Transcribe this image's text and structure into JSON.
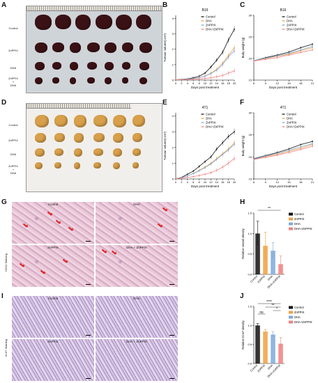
{
  "panels": {
    "A": "A",
    "B": "B",
    "C": "C",
    "D": "D",
    "E": "E",
    "F": "F",
    "G": "G",
    "H": "H",
    "I": "I",
    "J": "J"
  },
  "photo_rows": {
    "A": [
      "Control",
      "ZnPPIX",
      "DHA",
      "ZnPPIX\n+\nDHA"
    ],
    "D": [
      "Control",
      "ZnPPIX",
      "DHA",
      "ZnPPIX\n+\nDHA"
    ]
  },
  "histology": {
    "G_labels": [
      "Control",
      "DHA",
      "ZnPPIX",
      "DHA + ZnPPIX"
    ],
    "G_side": "CD31 Staining",
    "I_labels": [
      "Control",
      "DHA",
      "ZnPPIX",
      "DHA + ZnPPIX"
    ],
    "I_side": "Ki-67 Staining"
  },
  "colors": {
    "control": "#111111",
    "dha": "#f0a040",
    "znppix": "#7fa8d8",
    "combo": "#f08080",
    "tumor_A": "#3a1216",
    "tumor_D": "#d8a04a"
  },
  "chart_data": [
    {
      "id": "B",
      "type": "line",
      "title": "B16",
      "xlabel": "Days post treatment",
      "ylabel": "Tumour volume( cm³)",
      "x": [
        0,
        2,
        4,
        6,
        8,
        10,
        12,
        14,
        16,
        18,
        20
      ],
      "xticks": [
        "0",
        "2",
        "4",
        "6",
        "8",
        "10",
        "12",
        "14",
        "16",
        "18",
        "20"
      ],
      "yticks": [
        "0",
        "1",
        "2",
        "3",
        "4"
      ],
      "ylim": [
        0,
        4.2
      ],
      "legend": [
        "Control",
        "DHA",
        "ZnPPIX",
        "DHA+ZnPPIX"
      ],
      "series": [
        {
          "name": "Control",
          "values": [
            0.02,
            0.05,
            0.08,
            0.15,
            0.25,
            0.45,
            0.85,
            1.3,
            1.8,
            2.6,
            3.3
          ]
        },
        {
          "name": "DHA",
          "values": [
            0.02,
            0.04,
            0.06,
            0.1,
            0.16,
            0.26,
            0.45,
            0.7,
            1.1,
            1.6,
            2.1
          ]
        },
        {
          "name": "ZnPPIX",
          "values": [
            0.02,
            0.04,
            0.06,
            0.1,
            0.15,
            0.25,
            0.42,
            0.65,
            1.0,
            1.5,
            1.9
          ]
        },
        {
          "name": "DHA+ZnPPIX",
          "values": [
            0.02,
            0.03,
            0.04,
            0.05,
            0.07,
            0.1,
            0.15,
            0.22,
            0.3,
            0.45,
            0.6
          ]
        }
      ]
    },
    {
      "id": "C",
      "type": "line",
      "title": "B16",
      "xlabel": "Days post treatment",
      "ylabel": "Body weight (g)",
      "x": [
        6,
        9,
        12,
        15,
        18,
        21
      ],
      "xticks": [
        "6",
        "9",
        "12",
        "15",
        "18",
        "21"
      ],
      "yticks": [
        "15",
        "20",
        "25",
        "30"
      ],
      "ylim": [
        15,
        30
      ],
      "legend": [
        "Control",
        "DHA",
        "ZnPPIX",
        "DHA+ZnPPIX"
      ],
      "series": [
        {
          "name": "Control",
          "values": [
            19.5,
            20.2,
            20.8,
            21.5,
            22.5,
            23.3
          ]
        },
        {
          "name": "DHA",
          "values": [
            19.5,
            20.0,
            20.5,
            21.0,
            21.8,
            22.5
          ]
        },
        {
          "name": "ZnPPIX",
          "values": [
            19.5,
            20.1,
            20.6,
            21.2,
            22.0,
            22.8
          ]
        },
        {
          "name": "DHA+ZnPPIX",
          "values": [
            19.4,
            19.8,
            20.2,
            20.8,
            21.4,
            22.0
          ]
        }
      ]
    },
    {
      "id": "E",
      "type": "line",
      "title": "4T1",
      "xlabel": "Days post treatment",
      "ylabel": "Tumour volume( cm³)",
      "x": [
        0,
        2,
        4,
        6,
        8,
        10,
        12,
        14,
        16,
        18,
        20
      ],
      "xticks": [
        "0",
        "2",
        "4",
        "6",
        "8",
        "10",
        "12",
        "14",
        "16",
        "18",
        "20"
      ],
      "yticks": [
        "0",
        "1",
        "2",
        "3",
        "4"
      ],
      "ylim": [
        0,
        4.2
      ],
      "legend": [
        "Control",
        "DHA",
        "ZnPPIX",
        "DHA+ZnPPIX"
      ],
      "series": [
        {
          "name": "Control",
          "values": [
            0.02,
            0.1,
            0.3,
            0.5,
            0.8,
            1.1,
            1.4,
            1.9,
            2.3,
            2.7,
            3.0
          ]
        },
        {
          "name": "DHA",
          "values": [
            0.02,
            0.08,
            0.2,
            0.35,
            0.55,
            0.75,
            1.0,
            1.3,
            1.6,
            1.9,
            2.3
          ]
        },
        {
          "name": "ZnPPIX",
          "values": [
            0.02,
            0.08,
            0.2,
            0.34,
            0.52,
            0.72,
            0.95,
            1.25,
            1.55,
            1.85,
            2.2
          ]
        },
        {
          "name": "DHA+ZnPPIX",
          "values": [
            0.02,
            0.05,
            0.1,
            0.15,
            0.22,
            0.3,
            0.4,
            0.55,
            0.75,
            1.0,
            1.3
          ]
        }
      ]
    },
    {
      "id": "F",
      "type": "line",
      "title": "4T1",
      "xlabel": "Days post treatment",
      "ylabel": "Body weight (g)",
      "x": [
        6,
        9,
        12,
        15,
        18,
        21
      ],
      "xticks": [
        "6",
        "9",
        "12",
        "15",
        "18",
        "21"
      ],
      "yticks": [
        "15",
        "20",
        "25",
        "30"
      ],
      "ylim": [
        15,
        30
      ],
      "legend": [
        "Control",
        "DHA",
        "ZnPPIX",
        "DHA+ZnPPIX"
      ],
      "series": [
        {
          "name": "Control",
          "values": [
            19.6,
            20.3,
            21.0,
            21.8,
            22.8,
            23.5
          ]
        },
        {
          "name": "DHA",
          "values": [
            19.5,
            20.1,
            20.6,
            21.3,
            22.0,
            22.8
          ]
        },
        {
          "name": "ZnPPIX",
          "values": [
            19.5,
            20.2,
            20.8,
            21.5,
            22.3,
            23.0
          ]
        },
        {
          "name": "DHA+ZnPPIX",
          "values": [
            19.4,
            19.9,
            20.4,
            21.0,
            21.7,
            22.4
          ]
        }
      ]
    },
    {
      "id": "H",
      "type": "bar",
      "ylabel": "Relative vessel density",
      "categories": [
        "Control",
        "ZnPPIX",
        "DHA",
        "DHA+ZnPPIX"
      ],
      "values": [
        1.0,
        0.7,
        0.58,
        0.25
      ],
      "errors": [
        0.3,
        0.33,
        0.2,
        0.2
      ],
      "yticks": [
        "0.0",
        "0.5",
        "1.0",
        "1.5"
      ],
      "ylim": [
        0,
        1.5
      ],
      "legend": [
        "Control",
        "ZnPPIX",
        "DHA",
        "DHA+ZnPPIX"
      ],
      "sig": [
        {
          "from": 0,
          "to": 3,
          "label": "**"
        }
      ]
    },
    {
      "id": "J",
      "type": "bar",
      "ylabel": "Relative Ki-67 density",
      "categories": [
        "Control",
        "ZnPPIX",
        "DHA",
        "DHA+ZnPPIX"
      ],
      "values": [
        1.0,
        0.84,
        0.76,
        0.52
      ],
      "errors": [
        0.05,
        0.05,
        0.07,
        0.16
      ],
      "yticks": [
        "0.0",
        "0.5",
        "1.0",
        "1.5"
      ],
      "ylim": [
        0,
        1.5
      ],
      "legend": [
        "Control",
        "ZnPPIX",
        "DHA",
        "DHA+ZnPPIX"
      ],
      "sig": [
        {
          "from": 0,
          "to": 3,
          "label": "****"
        },
        {
          "from": 1,
          "to": 3,
          "label": "**"
        },
        {
          "from": 2,
          "to": 3,
          "label": "*"
        },
        {
          "from": 0,
          "to": 1,
          "label": "ns"
        }
      ]
    }
  ]
}
